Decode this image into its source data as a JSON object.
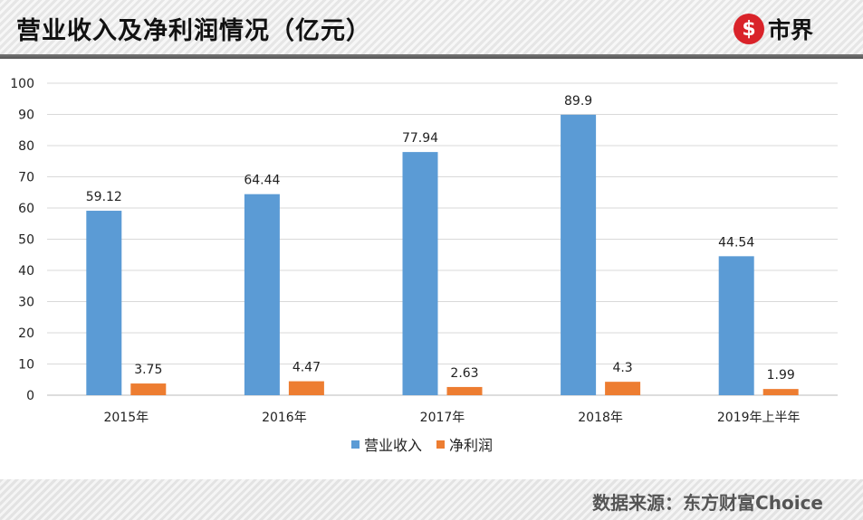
{
  "header": {
    "title": "营业收入及净利润情况（亿元）",
    "logo_text": "市界"
  },
  "footer": {
    "source": "数据来源：东方财富Choice"
  },
  "chart_data": {
    "type": "bar",
    "title": "营业收入及净利润情况（亿元）",
    "categories": [
      "2015年",
      "2016年",
      "2017年",
      "2018年",
      "2019年上半年"
    ],
    "series": [
      {
        "name": "营业收入",
        "color": "#5b9bd5",
        "values": [
          59.12,
          64.44,
          77.94,
          89.9,
          44.54
        ],
        "labels": [
          "59.12",
          "64.44",
          "77.94",
          "89.9",
          "44.54"
        ]
      },
      {
        "name": "净利润",
        "color": "#ed7d31",
        "values": [
          3.75,
          4.47,
          2.63,
          4.3,
          1.99
        ],
        "labels": [
          "3.75",
          "4.47",
          "2.63",
          "4.3",
          "1.99"
        ]
      }
    ],
    "ylim": [
      0,
      100
    ],
    "yticks": [
      "0",
      "10",
      "20",
      "30",
      "40",
      "50",
      "60",
      "70",
      "80",
      "90",
      "100"
    ],
    "grid": true,
    "legend": "bottom"
  }
}
